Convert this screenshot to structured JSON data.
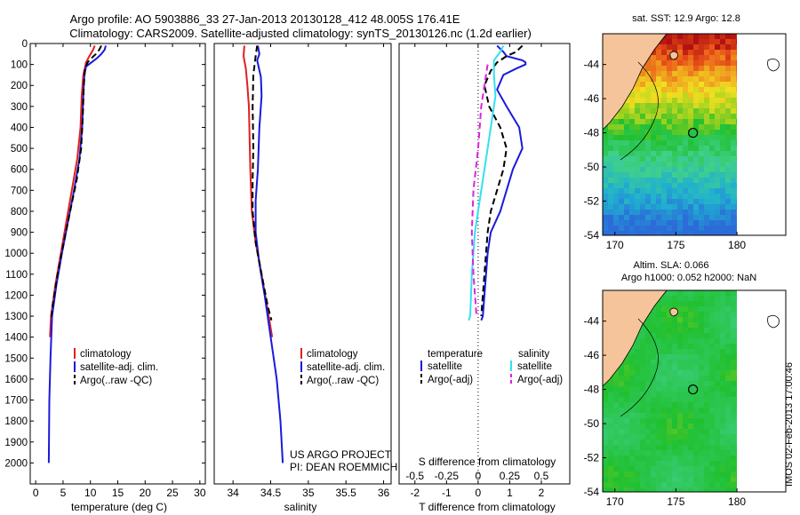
{
  "header": {
    "line1": "Argo profile: AO 5903886_33 27-Jan-2013 20130128_412 48.005S 176.41E",
    "line2": "Climatology: CARS2009. Satellite-adjusted climatology: synTS_20130126.nc (1.2d earlier)"
  },
  "credit": {
    "line1": "US ARGO PROJECT",
    "line2": "PI: DEAN ROEMMICH"
  },
  "stamp": "IMOS 02-Feb-2013 17:00:46",
  "colors": {
    "climatology": "#e02020",
    "satellite": "#1a1adc",
    "argo": "#000000",
    "sal_sat": "#33e0f0",
    "sal_argo": "#e020e0"
  },
  "chart_data": [
    {
      "type": "line",
      "xlabel": "temperature (deg C)",
      "ylabel": "",
      "xlim": [
        -1,
        31
      ],
      "ylim": [
        0,
        2100
      ],
      "x_ticks": [
        0,
        5,
        10,
        15,
        20,
        25,
        30
      ],
      "y_ticks": [
        0,
        100,
        200,
        300,
        400,
        500,
        600,
        700,
        800,
        900,
        1000,
        1100,
        1200,
        1300,
        1400,
        1500,
        1600,
        1700,
        1800,
        1900,
        2000
      ],
      "legend": [
        "climatology",
        "satellite-adj. clim.",
        "Argo(..raw -QC)"
      ],
      "series": [
        {
          "name": "climatology",
          "color": "#e02020",
          "style": "solid",
          "points": [
            [
              10.8,
              10
            ],
            [
              10.5,
              30
            ],
            [
              9.8,
              60
            ],
            [
              9.2,
              90
            ],
            [
              8.7,
              150
            ],
            [
              8.4,
              250
            ],
            [
              8.2,
              400
            ],
            [
              7.6,
              550
            ],
            [
              6.6,
              700
            ],
            [
              5.6,
              850
            ],
            [
              4.6,
              1000
            ],
            [
              3.6,
              1150
            ],
            [
              2.8,
              1300
            ],
            [
              2.6,
              1400
            ]
          ]
        },
        {
          "name": "satellite-adj. clim.",
          "color": "#1a1adc",
          "style": "solid",
          "points": [
            [
              12.8,
              10
            ],
            [
              12.6,
              30
            ],
            [
              12.0,
              50
            ],
            [
              11.2,
              70
            ],
            [
              10.2,
              90
            ],
            [
              9.2,
              110
            ],
            [
              8.9,
              150
            ],
            [
              8.7,
              250
            ],
            [
              8.5,
              400
            ],
            [
              8.0,
              550
            ],
            [
              7.0,
              700
            ],
            [
              5.9,
              850
            ],
            [
              4.8,
              1000
            ],
            [
              3.8,
              1150
            ],
            [
              3.0,
              1300
            ],
            [
              2.7,
              1500
            ],
            [
              2.5,
              1700
            ],
            [
              2.4,
              2000
            ]
          ]
        },
        {
          "name": "Argo(..raw -QC)",
          "color": "#000000",
          "style": "dashed",
          "points": [
            [
              12.0,
              10
            ],
            [
              11.6,
              30
            ],
            [
              11.0,
              50
            ],
            [
              10.2,
              70
            ],
            [
              9.5,
              90
            ],
            [
              9.0,
              120
            ],
            [
              8.8,
              200
            ],
            [
              8.6,
              350
            ],
            [
              8.3,
              500
            ],
            [
              7.5,
              650
            ],
            [
              6.3,
              800
            ],
            [
              5.1,
              950
            ],
            [
              4.0,
              1100
            ],
            [
              3.1,
              1250
            ],
            [
              2.8,
              1320
            ]
          ]
        }
      ]
    },
    {
      "type": "line",
      "xlabel": "salinity",
      "ylabel": "",
      "xlim": [
        33.75,
        36.1
      ],
      "ylim": [
        0,
        2100
      ],
      "x_ticks": [
        34,
        34.5,
        35,
        35.5,
        36
      ],
      "y_ticks": [],
      "legend": [
        "climatology",
        "satellite-adj. clim.",
        "Argo(..raw -QC)"
      ],
      "series": [
        {
          "name": "climatology",
          "color": "#e02020",
          "style": "solid",
          "points": [
            [
              34.15,
              10
            ],
            [
              34.14,
              60
            ],
            [
              34.17,
              120
            ],
            [
              34.19,
              200
            ],
            [
              34.21,
              300
            ],
            [
              34.22,
              450
            ],
            [
              34.23,
              600
            ],
            [
              34.25,
              800
            ],
            [
              34.3,
              950
            ],
            [
              34.38,
              1100
            ],
            [
              34.45,
              1250
            ],
            [
              34.52,
              1400
            ]
          ]
        },
        {
          "name": "satellite-adj. clim.",
          "color": "#1a1adc",
          "style": "solid",
          "points": [
            [
              34.33,
              10
            ],
            [
              34.35,
              50
            ],
            [
              34.32,
              80
            ],
            [
              34.37,
              160
            ],
            [
              34.38,
              250
            ],
            [
              34.35,
              400
            ],
            [
              34.33,
              600
            ],
            [
              34.3,
              750
            ],
            [
              34.3,
              900
            ],
            [
              34.35,
              1050
            ],
            [
              34.42,
              1200
            ],
            [
              34.5,
              1400
            ],
            [
              34.58,
              1600
            ],
            [
              34.63,
              1800
            ],
            [
              34.66,
              2000
            ]
          ]
        },
        {
          "name": "Argo(..raw -QC)",
          "color": "#000000",
          "style": "dashed",
          "points": [
            [
              34.32,
              10
            ],
            [
              34.3,
              60
            ],
            [
              34.27,
              150
            ],
            [
              34.26,
              300
            ],
            [
              34.27,
              500
            ],
            [
              34.26,
              650
            ],
            [
              34.26,
              800
            ],
            [
              34.3,
              950
            ],
            [
              34.38,
              1100
            ],
            [
              34.46,
              1250
            ],
            [
              34.51,
              1320
            ]
          ]
        }
      ]
    },
    {
      "type": "line",
      "xlabel": "T difference from climatology",
      "xlabel2": "S difference from climatology",
      "xlim": [
        -2.5,
        2.9
      ],
      "ylim": [
        0,
        2100
      ],
      "x_ticks": [
        -2,
        -1,
        0,
        1,
        2
      ],
      "x_ticks_top": [
        "-0.5",
        "-0.25",
        "0",
        "0.25",
        "0.5"
      ],
      "y_ticks": [],
      "legend_groups": [
        "temperature",
        "salinity"
      ],
      "legend": [
        "satellite",
        "Argo(-adj)",
        "satellite",
        "Argo(-adj)"
      ],
      "series": [
        {
          "name": "satellite",
          "group": "temperature",
          "color": "#1a1adc",
          "style": "solid",
          "points": [
            [
              0.6,
              10
            ],
            [
              0.8,
              40
            ],
            [
              0.9,
              60
            ],
            [
              1.4,
              80
            ],
            [
              1.5,
              90
            ],
            [
              1.5,
              100
            ],
            [
              1.2,
              120
            ],
            [
              0.8,
              150
            ],
            [
              0.6,
              220
            ],
            [
              0.9,
              300
            ],
            [
              1.3,
              400
            ],
            [
              1.4,
              500
            ],
            [
              1.1,
              600
            ],
            [
              0.9,
              700
            ],
            [
              0.7,
              800
            ],
            [
              0.4,
              900
            ],
            [
              0.3,
              1000
            ],
            [
              0.25,
              1100
            ],
            [
              0.2,
              1200
            ],
            [
              0.15,
              1300
            ],
            [
              0.1,
              1320
            ]
          ]
        },
        {
          "name": "Argo(-adj)",
          "group": "temperature",
          "color": "#000000",
          "style": "dashed",
          "points": [
            [
              1.4,
              10
            ],
            [
              1.2,
              40
            ],
            [
              0.9,
              60
            ],
            [
              0.6,
              90
            ],
            [
              0.4,
              130
            ],
            [
              0.2,
              200
            ],
            [
              0.35,
              300
            ],
            [
              0.7,
              400
            ],
            [
              0.9,
              500
            ],
            [
              0.8,
              600
            ],
            [
              0.6,
              700
            ],
            [
              0.4,
              800
            ],
            [
              0.3,
              900
            ],
            [
              0.25,
              1000
            ],
            [
              0.2,
              1100
            ],
            [
              0.15,
              1200
            ],
            [
              0.1,
              1300
            ]
          ]
        },
        {
          "name": "satellite",
          "group": "salinity",
          "color": "#33e0f0",
          "style": "solid",
          "points": [
            [
              0.8,
              10
            ],
            [
              0.7,
              40
            ],
            [
              0.5,
              80
            ],
            [
              0.5,
              150
            ],
            [
              0.55,
              250
            ],
            [
              0.45,
              350
            ],
            [
              0.3,
              500
            ],
            [
              0.1,
              700
            ],
            [
              -0.1,
              900
            ],
            [
              -0.2,
              1100
            ],
            [
              -0.25,
              1300
            ],
            [
              -0.3,
              1320
            ]
          ]
        },
        {
          "name": "Argo(-adj)",
          "group": "salinity",
          "color": "#e020e0",
          "style": "dashed",
          "points": [
            [
              0.3,
              100
            ],
            [
              0.2,
              200
            ],
            [
              0.1,
              300
            ],
            [
              0.0,
              500
            ],
            [
              -0.15,
              700
            ],
            [
              -0.2,
              900
            ],
            [
              -0.15,
              1100
            ],
            [
              -0.05,
              1300
            ]
          ]
        }
      ]
    },
    {
      "type": "heatmap",
      "title": "sat. SST: 12.9 Argo: 12.8",
      "x_ticks": [
        170,
        175,
        180
      ],
      "y_ticks": [
        -44,
        -46,
        -48,
        -50,
        -52,
        -54
      ],
      "xlim": [
        169,
        184
      ],
      "ylim": [
        -54,
        -42.2
      ],
      "marker": {
        "lon": 176.4,
        "lat": -48.0
      }
    },
    {
      "type": "heatmap",
      "title": "Altim. SLA: 0.066",
      "subtitle": "Argo h1000: 0.052 h2000: NaN",
      "x_ticks": [
        170,
        175,
        180
      ],
      "y_ticks": [
        -44,
        -46,
        -48,
        -50,
        -52,
        -54
      ],
      "xlim": [
        169,
        184
      ],
      "ylim": [
        -54,
        -42.2
      ],
      "marker": {
        "lon": 176.4,
        "lat": -48.0
      }
    }
  ]
}
